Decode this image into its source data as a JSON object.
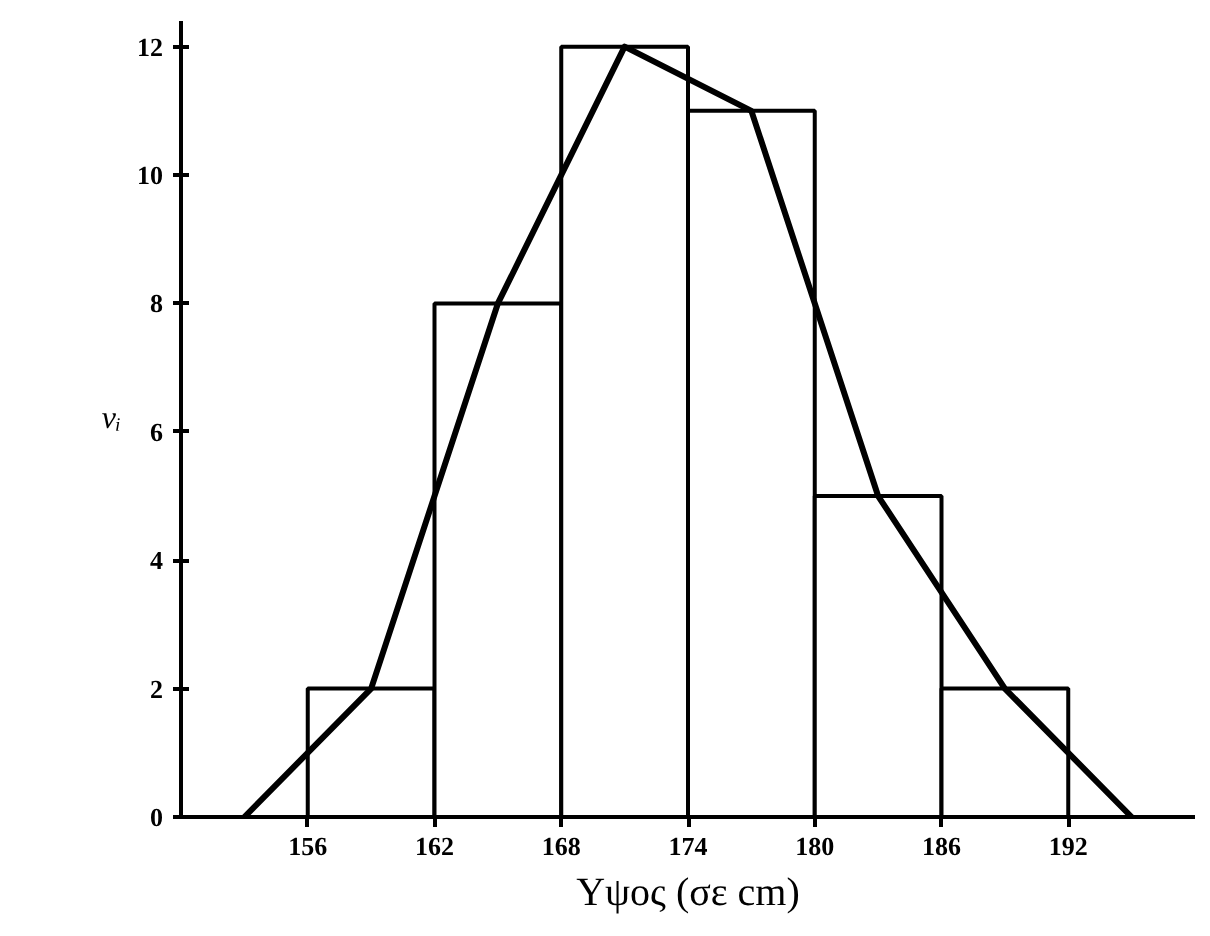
{
  "chart_data": {
    "type": "histogram",
    "xlabel": "Υψος (σε cm)",
    "ylabel": "νᵢ",
    "xlim": [
      150,
      198
    ],
    "ylim": [
      0,
      12.4
    ],
    "xticks": [
      156,
      162,
      168,
      174,
      180,
      186,
      192
    ],
    "yticks": [
      0,
      2,
      4,
      6,
      8,
      10,
      12
    ],
    "grid": false,
    "series": [
      {
        "color": "#ffffff",
        "bins": [
          156,
          162,
          168,
          174,
          180,
          186,
          192
        ],
        "values": [
          2,
          8,
          12,
          11,
          5,
          2
        ]
      },
      {
        "type": "line",
        "color": "#000000",
        "x": [
          153,
          159,
          165,
          171,
          177,
          183,
          189,
          195
        ],
        "values": [
          0,
          2,
          8,
          12,
          11,
          5,
          2,
          0
        ]
      }
    ]
  }
}
